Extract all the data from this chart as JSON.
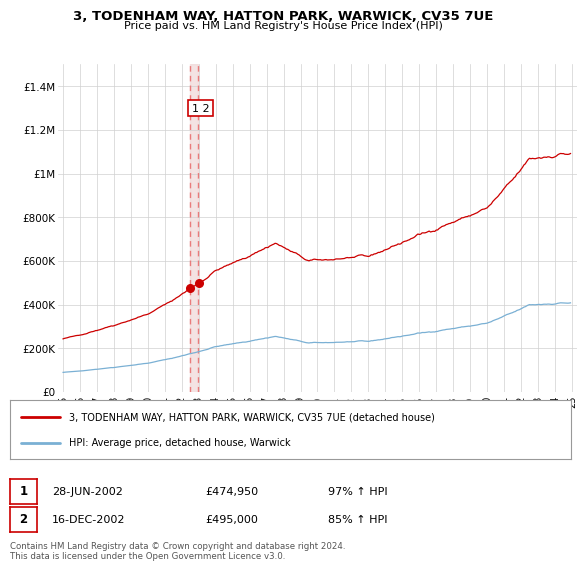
{
  "title": "3, TODENHAM WAY, HATTON PARK, WARWICK, CV35 7UE",
  "subtitle": "Price paid vs. HM Land Registry's House Price Index (HPI)",
  "ylim": [
    0,
    1500000
  ],
  "yticks": [
    0,
    200000,
    400000,
    600000,
    800000,
    1000000,
    1200000,
    1400000
  ],
  "ytick_labels": [
    "£0",
    "£200K",
    "£400K",
    "£600K",
    "£800K",
    "£1M",
    "£1.2M",
    "£1.4M"
  ],
  "background_color": "#ffffff",
  "grid_color": "#d0d0d0",
  "red_line_color": "#cc0000",
  "blue_line_color": "#7ab0d4",
  "dashed_line_color": "#e87070",
  "shade_color": "#f0d8d8",
  "marker1_price": 474950,
  "marker2_price": 495000,
  "marker1_date": "28-JUN-2002",
  "marker2_date": "16-DEC-2002",
  "marker1_hpi": "97% ↑ HPI",
  "marker2_hpi": "85% ↑ HPI",
  "legend_red_label": "3, TODENHAM WAY, HATTON PARK, WARWICK, CV35 7UE (detached house)",
  "legend_blue_label": "HPI: Average price, detached house, Warwick",
  "footer": "Contains HM Land Registry data © Crown copyright and database right 2024.\nThis data is licensed under the Open Government Licence v3.0.",
  "sale1_x": 2002.49,
  "sale2_x": 2002.96,
  "xmin": 1995,
  "xmax": 2025
}
